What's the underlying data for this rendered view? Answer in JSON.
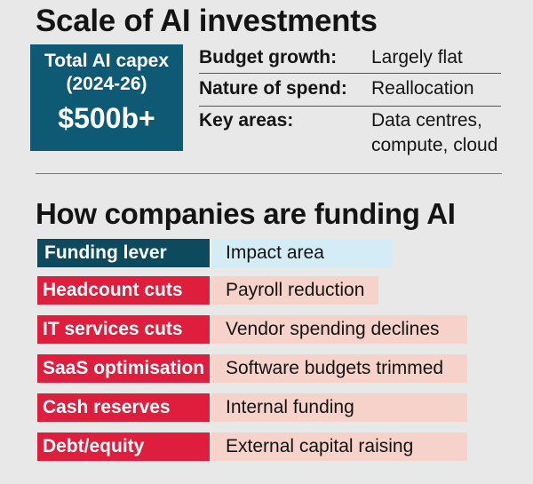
{
  "section1": {
    "title": "Scale of AI investments"
  },
  "capex": {
    "label_line1": "Total AI capex",
    "label_line2": "(2024-26)",
    "value": "$500b+"
  },
  "facts": [
    {
      "key": "Budget growth:",
      "value": "Largely flat"
    },
    {
      "key": "Nature of spend:",
      "value": "Reallocation"
    },
    {
      "key": "Key areas:",
      "value_line1": "Data centres,",
      "value_line2": "compute, cloud"
    }
  ],
  "section2": {
    "title": "How companies are funding AI"
  },
  "table": {
    "headers": {
      "lever": "Funding lever",
      "impact": "Impact area"
    },
    "rows": [
      {
        "lever": "Headcount cuts",
        "impact": "Payroll reduction"
      },
      {
        "lever": "IT services cuts",
        "impact": "Vendor spending declines"
      },
      {
        "lever": "SaaS optimisation",
        "impact": "Software budgets trimmed"
      },
      {
        "lever": "Cash reserves",
        "impact": "Internal funding"
      },
      {
        "lever": "Debt/equity",
        "impact": "External capital raising"
      }
    ]
  },
  "colors": {
    "capex_box": "#0e5a74",
    "header_dark": "#0e4a5e",
    "header_light": "#d4ecf6",
    "lever_red": "#de1e3c",
    "impact_pink": "#f6d2ca"
  }
}
